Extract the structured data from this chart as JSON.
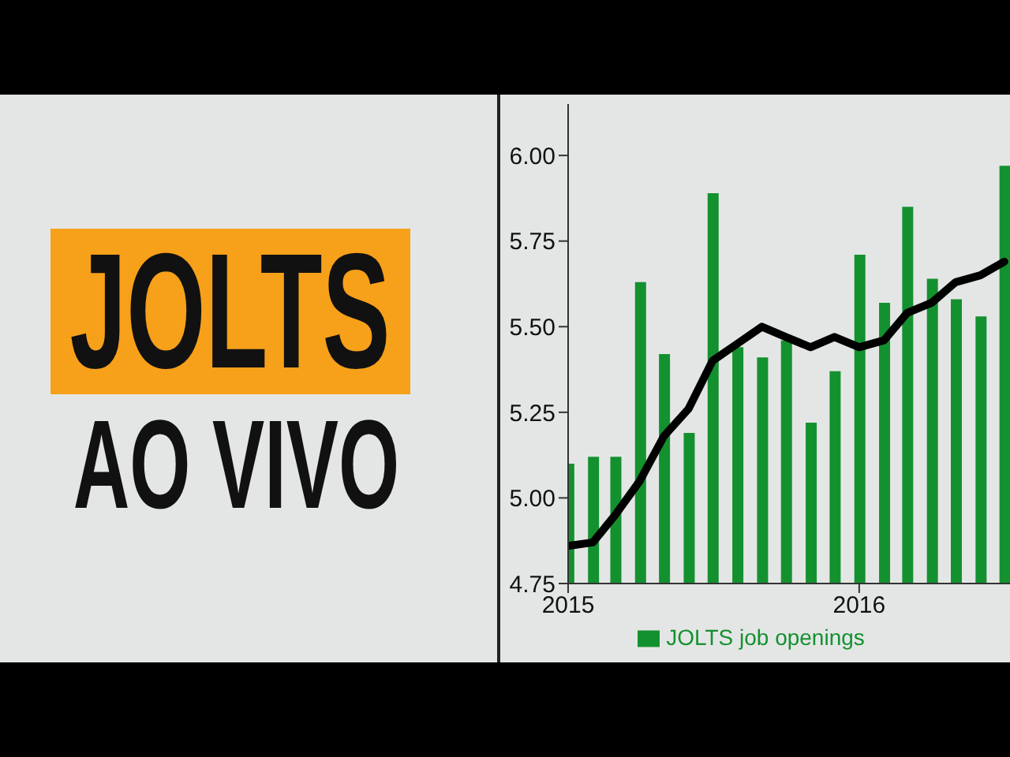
{
  "chart_data": {
    "type": "bar",
    "title": "JOLTS",
    "subtitle": "AO VIVO",
    "x": [
      "2015-01",
      "2015-02",
      "2015-03",
      "2015-04",
      "2015-05",
      "2015-06",
      "2015-07",
      "2015-08",
      "2015-09",
      "2015-10",
      "2015-11",
      "2015-12",
      "2016-01",
      "2016-02",
      "2016-03",
      "2016-04",
      "2016-05",
      "2016-06",
      "2016-07"
    ],
    "series": [
      {
        "name": "JOLTS job openings",
        "color": "#14912f",
        "values": [
          5.1,
          5.12,
          5.12,
          5.63,
          5.42,
          5.19,
          5.89,
          5.44,
          5.41,
          5.46,
          5.22,
          5.37,
          5.71,
          5.57,
          5.85,
          5.64,
          5.58,
          5.53,
          5.97
        ]
      },
      {
        "type": "line",
        "color": "#000000",
        "values": [
          4.86,
          4.87,
          4.95,
          5.05,
          5.18,
          5.26,
          5.4,
          5.45,
          5.5,
          5.47,
          5.44,
          5.47,
          5.44,
          5.46,
          5.54,
          5.57,
          5.63,
          5.65,
          5.69
        ]
      }
    ],
    "xlim": [
      "2015-01",
      "2016-07-20"
    ],
    "xticks": [
      "2015",
      "2016"
    ],
    "ylim": [
      4.75,
      6.15
    ],
    "yticks": [
      {
        "value": 4.75,
        "label": "4.75"
      },
      {
        "value": 5,
        "label": "5.00"
      },
      {
        "value": 5.25,
        "label": "5.25"
      },
      {
        "value": 5.5,
        "label": "5.50"
      },
      {
        "value": 5.75,
        "label": "5.75"
      },
      {
        "value": 6,
        "label": "6.00"
      }
    ],
    "grid": false,
    "legend": "bottom",
    "marker": "none",
    "line_style": "solid"
  }
}
